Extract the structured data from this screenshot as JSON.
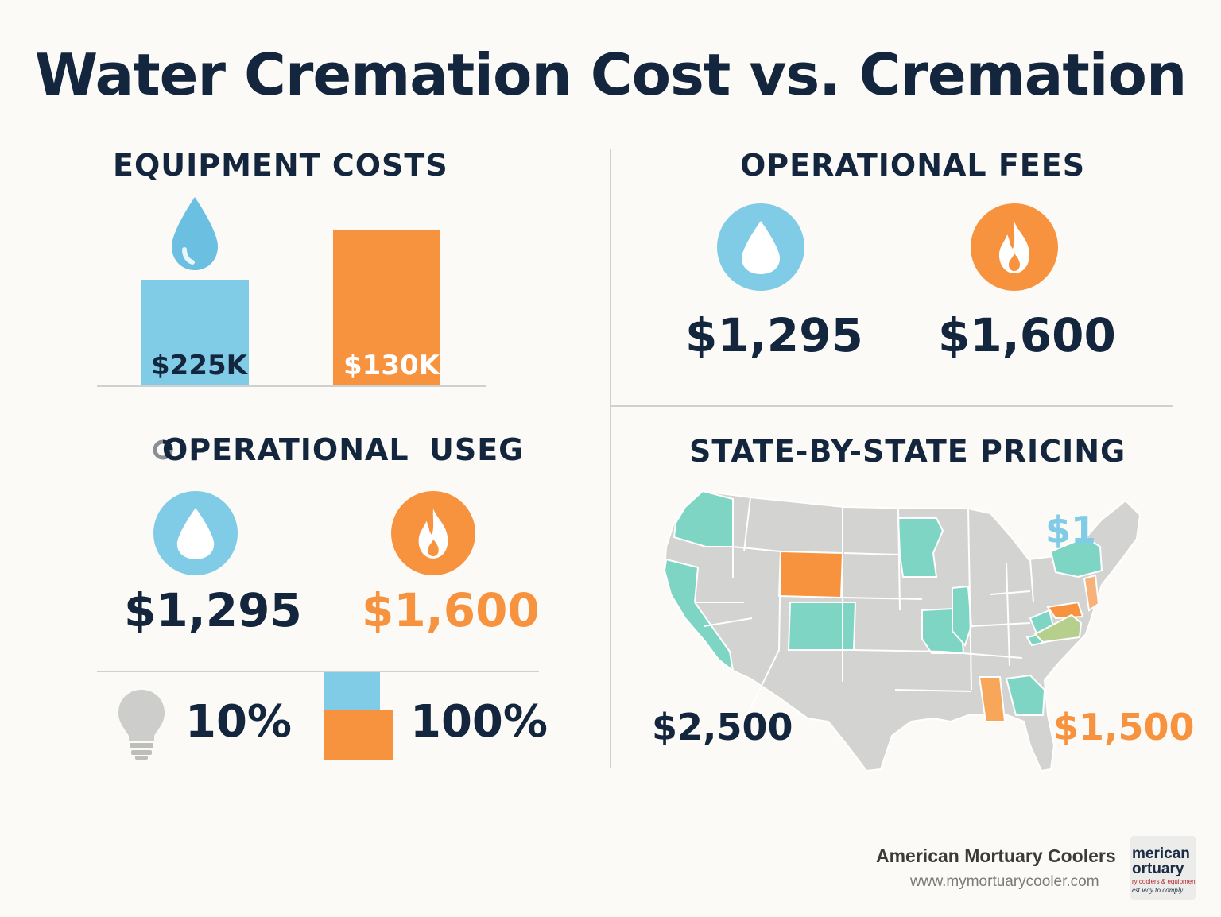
{
  "title": "Water Cremation Cost vs. Cremation",
  "equipment": {
    "heading": "EQUIPMENT COSTS",
    "water_label": "$225K",
    "flame_label": "$130K"
  },
  "fees_top": {
    "heading": "OPERATIONAL FEES",
    "water_value": "$1,295",
    "flame_value": "$1,600"
  },
  "operational": {
    "heading_left": "OPERATIONAL",
    "heading_right": "USEG",
    "water_value": "$1,295",
    "flame_value": "$1,600",
    "energy_percent": "10%",
    "stack_percent": "100%"
  },
  "state_pricing": {
    "heading": "STATE-BY-STATE PRICING",
    "left_price": "$2,500",
    "right_price": "$1,500",
    "top_price": "$1"
  },
  "footer": {
    "company": "American Mortuary Coolers",
    "url": "www.mymortuarycooler.com",
    "logo_line1": "merican",
    "logo_line2": "ortuary",
    "logo_line3": "ry coolers & equipment",
    "logo_line4": "est way to comply"
  },
  "colors": {
    "navy": "#13263d",
    "blue": "#80cbe6",
    "orange": "#f7923e",
    "teal": "#7fd5c4",
    "map_gray": "#d3d3d1",
    "olive": "#b6cf8c"
  },
  "icons": {
    "water": "water-drop-icon",
    "flame": "flame-icon",
    "energy": "light-bulb-icon"
  }
}
